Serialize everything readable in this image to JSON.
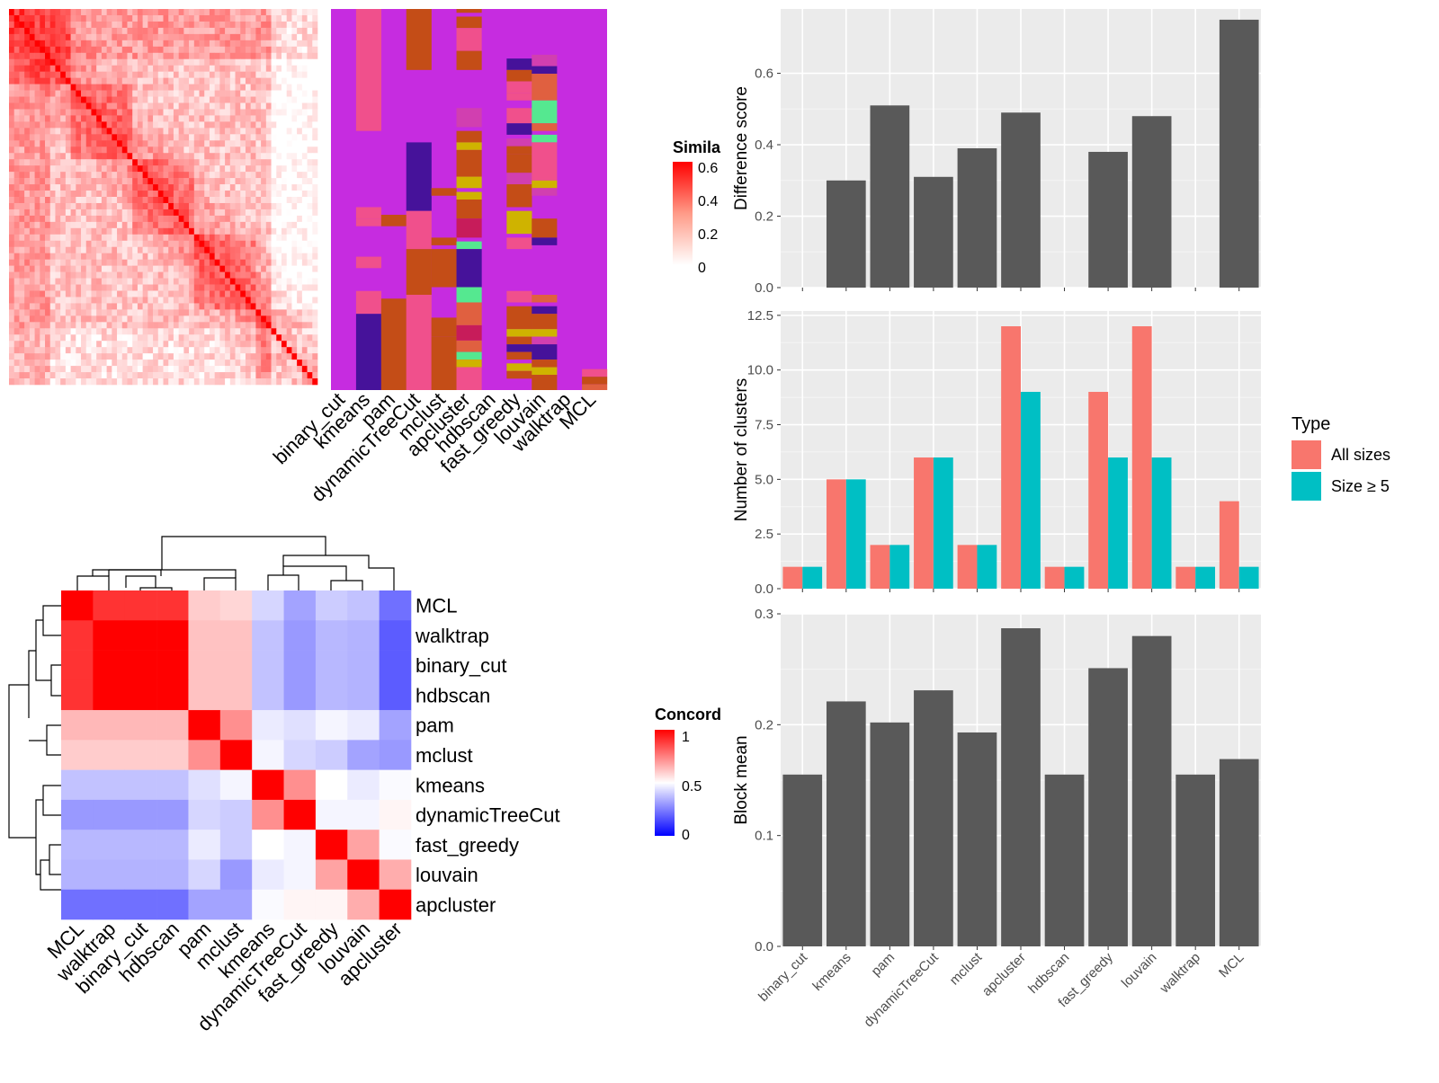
{
  "methods_order": [
    "binary_cut",
    "kmeans",
    "pam",
    "dynamicTreeCut",
    "mclust",
    "apcluster",
    "hdbscan",
    "fast_greedy",
    "louvain",
    "walktrap",
    "MCL"
  ],
  "similarity_legend": {
    "title": "Simila",
    "ticks": [
      "0.6",
      "0.4",
      "0.2",
      "0"
    ]
  },
  "concordance_legend": {
    "title": "Concord",
    "ticks": [
      "1",
      "0.5",
      "0"
    ]
  },
  "concordance_order": [
    "MCL",
    "walktrap",
    "binary_cut",
    "hdbscan",
    "pam",
    "mclust",
    "kmeans",
    "dynamicTreeCut",
    "fast_greedy",
    "louvain",
    "apcluster"
  ],
  "concordance_matrix": [
    [
      1.0,
      0.9,
      0.9,
      0.9,
      0.6,
      0.58,
      0.42,
      0.32,
      0.4,
      0.38,
      0.22
    ],
    [
      0.9,
      1.0,
      1.0,
      1.0,
      0.62,
      0.62,
      0.38,
      0.3,
      0.36,
      0.35,
      0.18
    ],
    [
      0.9,
      1.0,
      1.0,
      1.0,
      0.62,
      0.62,
      0.38,
      0.3,
      0.36,
      0.35,
      0.18
    ],
    [
      0.9,
      1.0,
      1.0,
      1.0,
      0.62,
      0.62,
      0.38,
      0.3,
      0.36,
      0.35,
      0.18
    ],
    [
      0.64,
      0.64,
      0.64,
      0.64,
      1.0,
      0.72,
      0.46,
      0.44,
      0.48,
      0.46,
      0.32
    ],
    [
      0.6,
      0.6,
      0.6,
      0.6,
      0.72,
      1.0,
      0.48,
      0.42,
      0.4,
      0.32,
      0.3
    ],
    [
      0.38,
      0.38,
      0.38,
      0.38,
      0.44,
      0.48,
      1.0,
      0.72,
      0.5,
      0.46,
      0.49
    ],
    [
      0.3,
      0.3,
      0.3,
      0.3,
      0.42,
      0.4,
      0.72,
      1.0,
      0.48,
      0.48,
      0.52
    ],
    [
      0.36,
      0.36,
      0.36,
      0.36,
      0.46,
      0.4,
      0.5,
      0.48,
      1.0,
      0.68,
      0.49
    ],
    [
      0.35,
      0.35,
      0.35,
      0.35,
      0.42,
      0.3,
      0.46,
      0.48,
      0.68,
      1.0,
      0.66
    ],
    [
      0.22,
      0.22,
      0.22,
      0.22,
      0.32,
      0.32,
      0.49,
      0.52,
      0.52,
      0.66,
      1.0
    ]
  ],
  "chart_data": [
    {
      "type": "bar",
      "categories": [
        "binary_cut",
        "kmeans",
        "pam",
        "dynamicTreeCut",
        "mclust",
        "apcluster",
        "hdbscan",
        "fast_greedy",
        "louvain",
        "walktrap",
        "MCL"
      ],
      "values": [
        0,
        0.3,
        0.51,
        0.31,
        0.39,
        0.49,
        0,
        0.38,
        0.48,
        0,
        0.75
      ],
      "ylabel": "Difference score",
      "ylim": [
        0,
        0.78
      ],
      "yticks": [
        "0.0",
        "0.2",
        "0.4",
        "0.6"
      ],
      "ytick_values": [
        0,
        0.2,
        0.4,
        0.6
      ],
      "color": "#595959"
    },
    {
      "type": "bar",
      "categories": [
        "binary_cut",
        "kmeans",
        "pam",
        "dynamicTreeCut",
        "mclust",
        "apcluster",
        "hdbscan",
        "fast_greedy",
        "louvain",
        "walktrap",
        "MCL"
      ],
      "series": [
        {
          "name": "All sizes",
          "color": "#F8766D",
          "values": [
            1,
            5,
            2,
            6,
            2,
            12,
            1,
            9,
            12,
            1,
            4
          ]
        },
        {
          "name": "Size ≥ 5",
          "color": "#00BFC4",
          "values": [
            1,
            5,
            2,
            6,
            2,
            9,
            1,
            6,
            6,
            1,
            1
          ]
        }
      ],
      "ylabel": "Number of clusters",
      "ylim": [
        0,
        12.7
      ],
      "yticks": [
        "0.0",
        "2.5",
        "5.0",
        "7.5",
        "10.0",
        "12.5"
      ],
      "ytick_values": [
        0,
        2.5,
        5,
        7.5,
        10,
        12.5
      ],
      "legend": {
        "title": "Type",
        "position": "right"
      }
    },
    {
      "type": "bar",
      "categories": [
        "binary_cut",
        "kmeans",
        "pam",
        "dynamicTreeCut",
        "mclust",
        "apcluster",
        "hdbscan",
        "fast_greedy",
        "louvain",
        "walktrap",
        "MCL"
      ],
      "values": [
        0.155,
        0.221,
        0.202,
        0.231,
        0.193,
        0.287,
        0.155,
        0.251,
        0.28,
        0.155,
        0.169
      ],
      "ylabel": "Block mean",
      "ylim": [
        0,
        0.3
      ],
      "yticks": [
        "0.0",
        "0.1",
        "0.2",
        "0.3"
      ],
      "ytick_values": [
        0,
        0.1,
        0.2,
        0.3
      ],
      "color": "#595959"
    }
  ]
}
